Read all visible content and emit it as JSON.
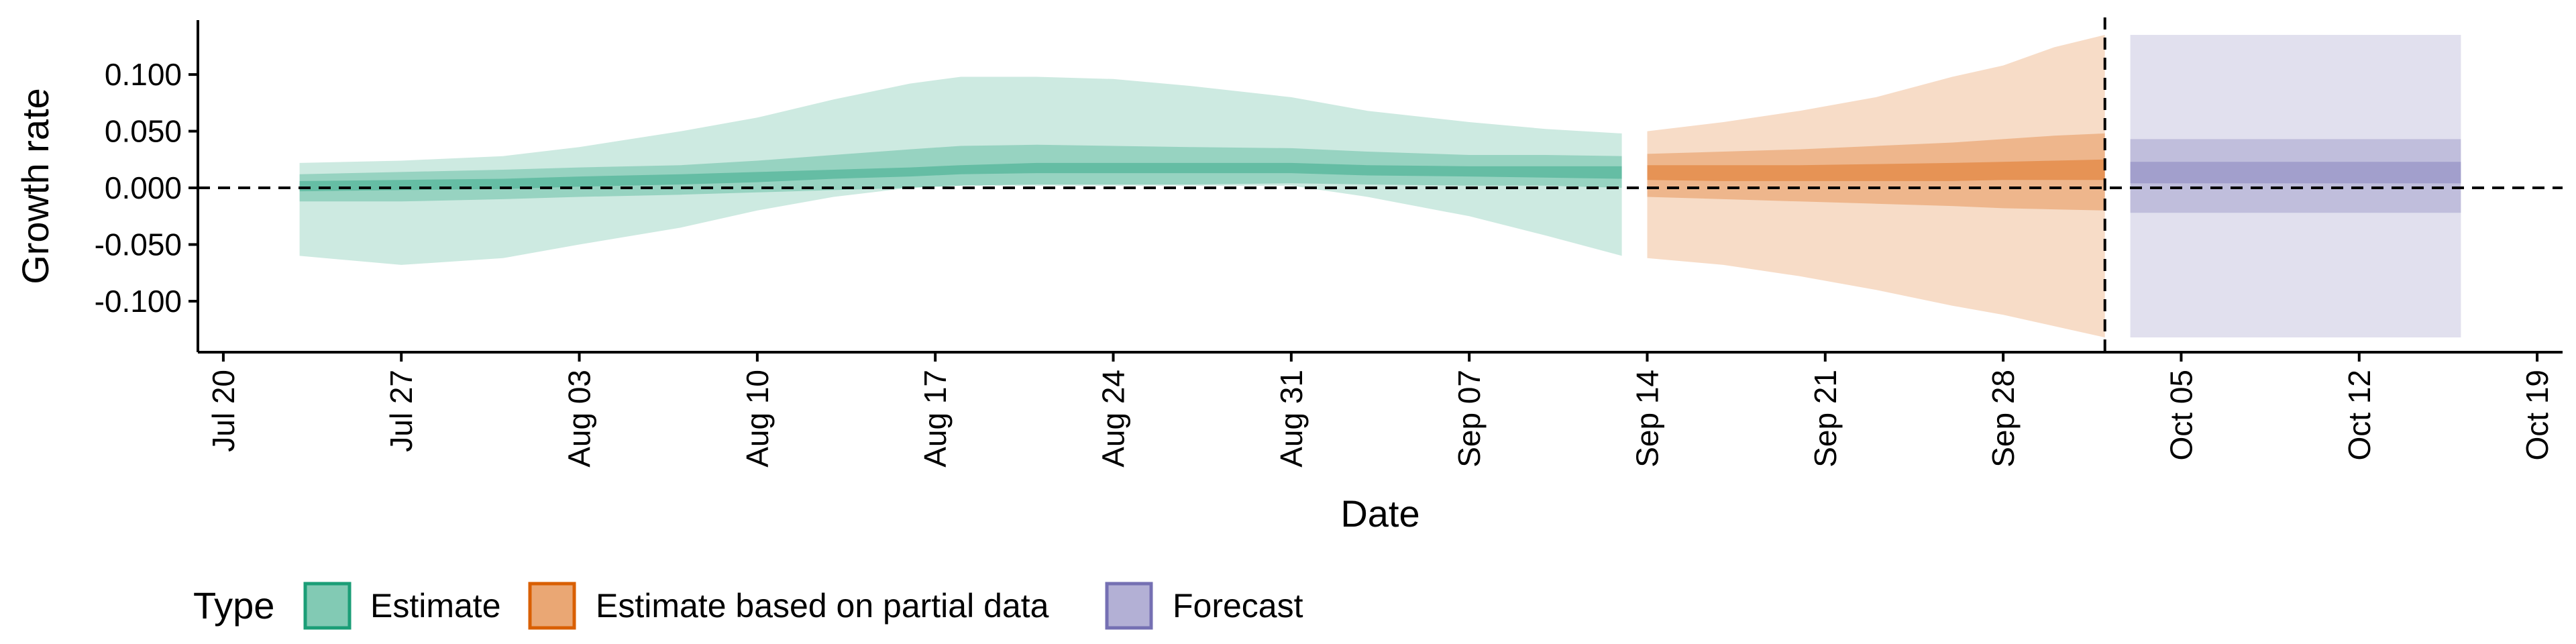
{
  "chart_data": {
    "type": "area",
    "title": "",
    "xlabel": "Date",
    "ylabel": "Growth rate",
    "ylim": [
      -0.145,
      0.148
    ],
    "xlim": [
      "2020-07-19",
      "2020-10-20"
    ],
    "y_ticks": [
      -0.1,
      -0.05,
      0.0,
      0.05,
      0.1
    ],
    "y_tick_labels": [
      "-0.100",
      "-0.050",
      "0.000",
      "0.050",
      "0.100"
    ],
    "x_ticks": [
      "2020-07-20",
      "2020-07-27",
      "2020-08-03",
      "2020-08-10",
      "2020-08-17",
      "2020-08-24",
      "2020-08-31",
      "2020-09-07",
      "2020-09-14",
      "2020-09-21",
      "2020-09-28",
      "2020-10-05",
      "2020-10-12",
      "2020-10-19"
    ],
    "x_tick_labels": [
      "Jul 20",
      "Jul 27",
      "Aug 03",
      "Aug 10",
      "Aug 17",
      "Aug 24",
      "Aug 31",
      "Sep 07",
      "Sep 14",
      "Sep 21",
      "Sep 28",
      "Oct 05",
      "Oct 12",
      "Oct 19"
    ],
    "reference_lines": {
      "horizontal_y": 0.0,
      "vertical_x": "2020-10-02"
    },
    "grid": false,
    "legend": {
      "title": "Type",
      "position": "bottom-left",
      "entries": [
        {
          "label": "Estimate",
          "color": "#1b9e77",
          "border": "#1b9e77"
        },
        {
          "label": "Estimate based on partial data",
          "color": "#d95f02",
          "border": "#d95f02"
        },
        {
          "label": "Forecast",
          "color": "#7570b3",
          "border": "#7570b3"
        }
      ]
    },
    "series": [
      {
        "name": "Estimate",
        "color": "#1b9e77",
        "x": [
          "2020-07-23",
          "2020-07-27",
          "2020-07-31",
          "2020-08-03",
          "2020-08-07",
          "2020-08-10",
          "2020-08-13",
          "2020-08-16",
          "2020-08-18",
          "2020-08-21",
          "2020-08-24",
          "2020-08-27",
          "2020-08-31",
          "2020-09-03",
          "2020-09-07",
          "2020-09-10",
          "2020-09-13"
        ],
        "lower_90": [
          -0.06,
          -0.068,
          -0.062,
          -0.05,
          -0.035,
          -0.02,
          -0.008,
          0.0,
          0.002,
          0.002,
          0.002,
          0.002,
          0.002,
          -0.008,
          -0.025,
          -0.042,
          -0.06
        ],
        "lower_50": [
          -0.012,
          -0.012,
          -0.01,
          -0.008,
          -0.006,
          -0.004,
          -0.002,
          0.0,
          0.002,
          0.003,
          0.003,
          0.003,
          0.004,
          0.003,
          0.002,
          0.002,
          0.0
        ],
        "lower_20": [
          -0.003,
          -0.002,
          -0.001,
          0.001,
          0.003,
          0.005,
          0.008,
          0.01,
          0.012,
          0.013,
          0.013,
          0.013,
          0.013,
          0.011,
          0.01,
          0.009,
          0.008
        ],
        "upper_20": [
          0.006,
          0.007,
          0.008,
          0.01,
          0.012,
          0.014,
          0.016,
          0.018,
          0.02,
          0.022,
          0.022,
          0.022,
          0.022,
          0.02,
          0.019,
          0.019,
          0.019
        ],
        "upper_50": [
          0.012,
          0.014,
          0.016,
          0.018,
          0.02,
          0.024,
          0.029,
          0.034,
          0.037,
          0.038,
          0.037,
          0.036,
          0.035,
          0.032,
          0.029,
          0.029,
          0.028
        ],
        "upper_90": [
          0.022,
          0.024,
          0.028,
          0.036,
          0.05,
          0.062,
          0.078,
          0.092,
          0.098,
          0.098,
          0.096,
          0.09,
          0.08,
          0.068,
          0.058,
          0.052,
          0.048
        ]
      },
      {
        "name": "Estimate based on partial data",
        "color": "#d95f02",
        "x": [
          "2020-09-14",
          "2020-09-17",
          "2020-09-20",
          "2020-09-23",
          "2020-09-26",
          "2020-09-28",
          "2020-09-30",
          "2020-10-02"
        ],
        "lower_90": [
          -0.062,
          -0.068,
          -0.078,
          -0.09,
          -0.104,
          -0.112,
          -0.122,
          -0.132
        ],
        "lower_50": [
          -0.008,
          -0.01,
          -0.012,
          -0.014,
          -0.016,
          -0.018,
          -0.019,
          -0.02
        ],
        "lower_20": [
          0.007,
          0.006,
          0.006,
          0.006,
          0.006,
          0.007,
          0.007,
          0.007
        ],
        "upper_20": [
          0.02,
          0.02,
          0.02,
          0.021,
          0.022,
          0.023,
          0.024,
          0.025
        ],
        "upper_50": [
          0.03,
          0.032,
          0.034,
          0.037,
          0.04,
          0.043,
          0.046,
          0.048
        ],
        "upper_90": [
          0.05,
          0.058,
          0.068,
          0.08,
          0.098,
          0.108,
          0.124,
          0.135
        ]
      },
      {
        "name": "Forecast",
        "color": "#7570b3",
        "x": [
          "2020-10-03",
          "2020-10-16"
        ],
        "lower_90": [
          -0.132,
          -0.132
        ],
        "lower_50": [
          -0.022,
          -0.022
        ],
        "lower_20": [
          0.004,
          0.004
        ],
        "upper_20": [
          0.023,
          0.023
        ],
        "upper_50": [
          0.043,
          0.043
        ],
        "upper_90": [
          0.135,
          0.135
        ]
      }
    ]
  }
}
